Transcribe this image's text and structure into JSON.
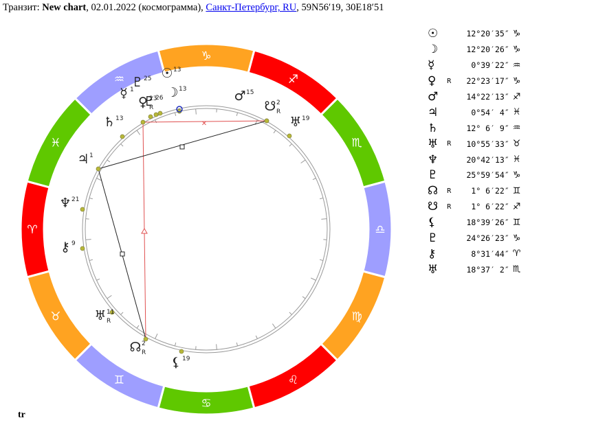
{
  "header": {
    "prefix": "Транзит: ",
    "chart_name": "New chart",
    "date_info": ", 02.01.2022 (космограмма), ",
    "location_link": "Санкт-Петербург, RU",
    "coordinates": ", 59N56′19, 30E18′51"
  },
  "footer_label": "tr",
  "zodiac_ring": [
    {
      "name": "aries",
      "glyph": "♈",
      "color": "#ff0000"
    },
    {
      "name": "taurus",
      "glyph": "♉",
      "color": "#ffa321"
    },
    {
      "name": "gemini",
      "glyph": "♊",
      "color": "#9e9eff"
    },
    {
      "name": "cancer",
      "glyph": "♋",
      "color": "#5fc800"
    },
    {
      "name": "leo",
      "glyph": "♌",
      "color": "#ff0000"
    },
    {
      "name": "virgo",
      "glyph": "♍",
      "color": "#ffa321"
    },
    {
      "name": "libra",
      "glyph": "♎",
      "color": "#9e9eff"
    },
    {
      "name": "scorpio",
      "glyph": "♏",
      "color": "#5fc800"
    },
    {
      "name": "sagittarius",
      "glyph": "♐",
      "color": "#ff0000"
    },
    {
      "name": "capricorn",
      "glyph": "♑",
      "color": "#ffa321"
    },
    {
      "name": "aquarius",
      "glyph": "♒",
      "color": "#9e9eff"
    },
    {
      "name": "pisces",
      "glyph": "♓",
      "color": "#5fc800"
    }
  ],
  "chart_points": [
    {
      "name": "sun",
      "glyph": "☉",
      "degree": "13",
      "retro": ""
    },
    {
      "name": "moon",
      "glyph": "☽",
      "degree": "13",
      "retro": ""
    },
    {
      "name": "mercury",
      "glyph": "☿",
      "degree": "1",
      "retro": ""
    },
    {
      "name": "venus",
      "glyph": "♀",
      "degree": "23",
      "retro": "R"
    },
    {
      "name": "mars",
      "glyph": "♂",
      "degree": "15",
      "retro": ""
    },
    {
      "name": "jupiter",
      "glyph": "♃",
      "degree": "1",
      "retro": ""
    },
    {
      "name": "saturn",
      "glyph": "♄",
      "degree": "13",
      "retro": ""
    },
    {
      "name": "uranus",
      "glyph": "♅",
      "degree": "11",
      "retro": "R"
    },
    {
      "name": "neptune",
      "glyph": "♆",
      "degree": "21",
      "retro": ""
    },
    {
      "name": "pluto",
      "glyph": "♇",
      "degree": "26",
      "retro": ""
    },
    {
      "name": "north-node",
      "glyph": "☊",
      "degree": "2",
      "retro": "R"
    },
    {
      "name": "south-node",
      "glyph": "☋",
      "degree": "2",
      "retro": "R"
    },
    {
      "name": "lilith",
      "glyph": "⚸",
      "degree": "19",
      "retro": ""
    },
    {
      "name": "persephone",
      "glyph": "♇",
      "degree": "25",
      "retro": ""
    },
    {
      "name": "chiron",
      "glyph": "⚷",
      "degree": "9",
      "retro": ""
    },
    {
      "name": "hades",
      "glyph": "♅",
      "degree": "19",
      "retro": ""
    }
  ],
  "positions_table": [
    {
      "planet": "sun",
      "glyph": "☉",
      "retro": "",
      "degree": "12°20′35″",
      "sign": "♑",
      "color": "#000000"
    },
    {
      "planet": "moon",
      "glyph": "☽",
      "retro": "",
      "degree": "12°20′26″",
      "sign": "♑",
      "color": "#000000"
    },
    {
      "planet": "mercury",
      "glyph": "☿",
      "retro": "",
      "degree": "0°39′22″",
      "sign": "♒",
      "color": "#000000"
    },
    {
      "planet": "venus",
      "glyph": "♀",
      "retro": "R",
      "degree": "22°23′17″",
      "sign": "♑",
      "color": "#000000"
    },
    {
      "planet": "mars",
      "glyph": "♂",
      "retro": "",
      "degree": "14°22′13″",
      "sign": "♐",
      "color": "#000000"
    },
    {
      "planet": "jupiter",
      "glyph": "♃",
      "retro": "",
      "degree": "0°54′ 4″",
      "sign": "♓",
      "color": "#000000"
    },
    {
      "planet": "saturn",
      "glyph": "♄",
      "retro": "",
      "degree": "12° 6′ 9″",
      "sign": "♒",
      "color": "#000000"
    },
    {
      "planet": "uranus",
      "glyph": "♅",
      "retro": "R",
      "degree": "10°55′33″",
      "sign": "♉",
      "color": "#000000"
    },
    {
      "planet": "neptune",
      "glyph": "♆",
      "retro": "",
      "degree": "20°42′13″",
      "sign": "♓",
      "color": "#000000"
    },
    {
      "planet": "pluto",
      "glyph": "♇",
      "retro": "",
      "degree": "25°59′54″",
      "sign": "♑",
      "color": "#000000"
    },
    {
      "planet": "north-node",
      "glyph": "☊",
      "retro": "R",
      "degree": "1° 6′22″",
      "sign": "♊",
      "color": "#000000"
    },
    {
      "planet": "south-node",
      "glyph": "☋",
      "retro": "R",
      "degree": "1° 6′22″",
      "sign": "♐",
      "color": "#000000"
    },
    {
      "planet": "lilith",
      "glyph": "⚸",
      "retro": "",
      "degree": "18°39′26″",
      "sign": "♊",
      "color": "#000000"
    },
    {
      "planet": "persephone",
      "glyph": "♇",
      "retro": "",
      "degree": "24°26′23″",
      "sign": "♑",
      "color": "#000000"
    },
    {
      "planet": "chiron",
      "glyph": "⚷",
      "retro": "",
      "degree": "8°31′44″",
      "sign": "♈",
      "color": "#000000"
    },
    {
      "planet": "hades",
      "glyph": "♅",
      "retro": "",
      "degree": "18°37′ 2″",
      "sign": "♏",
      "color": "#000000"
    }
  ]
}
